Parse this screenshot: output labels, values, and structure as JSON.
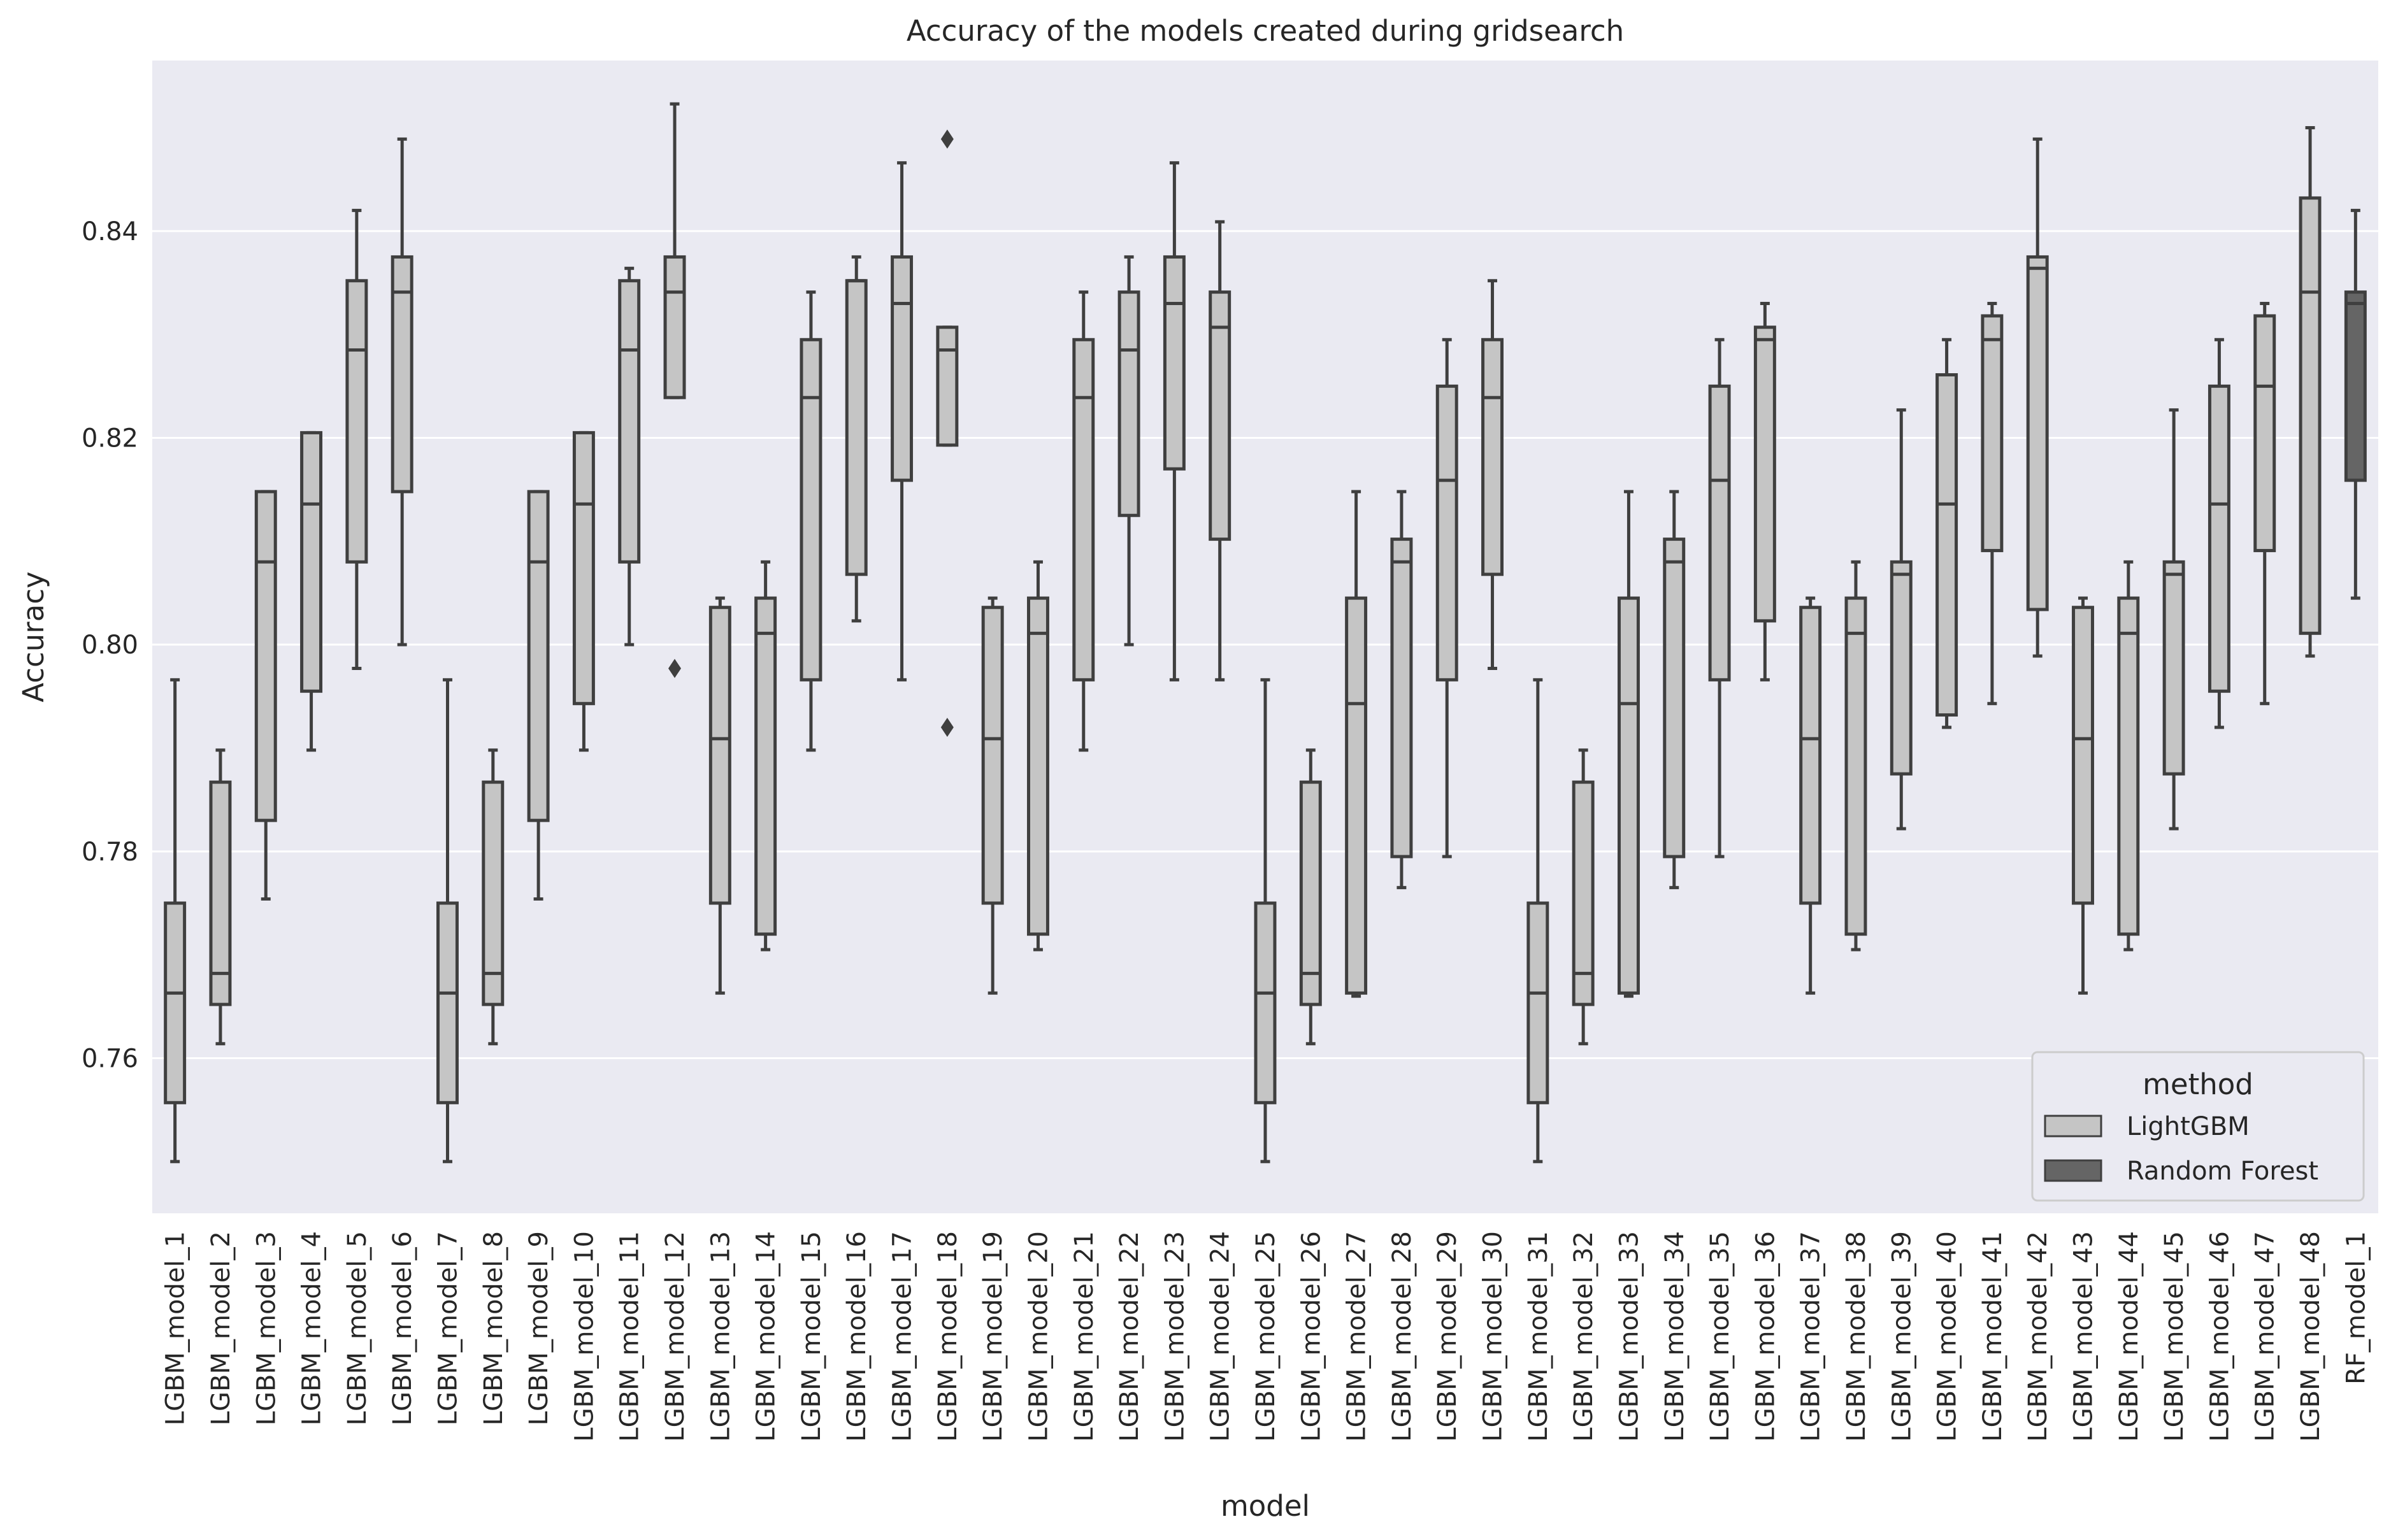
{
  "chart_data": {
    "type": "box",
    "title": "Accuracy of the models created during gridsearch",
    "xlabel": "model",
    "ylabel": "Accuracy",
    "ylim": [
      0.745,
      0.8565
    ],
    "yticks": [
      0.76,
      0.78,
      0.8,
      0.82,
      0.84
    ],
    "ytick_labels": [
      "0.76",
      "0.78",
      "0.80",
      "0.82",
      "0.84"
    ],
    "grid": true,
    "legend": {
      "title": "method",
      "position": "lower-right",
      "entries": [
        {
          "label": "LightGBM",
          "color": "#c5c5c5"
        },
        {
          "label": "Random Forest",
          "color": "#656565"
        }
      ]
    },
    "colors": {
      "background": "#eaeaf2",
      "grid": "#ffffff",
      "box_edge": "#3f3f3f",
      "LightGBM": "#c5c5c5",
      "Random Forest": "#656565"
    },
    "categories": [
      "LGBM_model_1",
      "LGBM_model_2",
      "LGBM_model_3",
      "LGBM_model_4",
      "LGBM_model_5",
      "LGBM_model_6",
      "LGBM_model_7",
      "LGBM_model_8",
      "LGBM_model_9",
      "LGBM_model_10",
      "LGBM_model_11",
      "LGBM_model_12",
      "LGBM_model_13",
      "LGBM_model_14",
      "LGBM_model_15",
      "LGBM_model_16",
      "LGBM_model_17",
      "LGBM_model_18",
      "LGBM_model_19",
      "LGBM_model_20",
      "LGBM_model_21",
      "LGBM_model_22",
      "LGBM_model_23",
      "LGBM_model_24",
      "LGBM_model_25",
      "LGBM_model_26",
      "LGBM_model_27",
      "LGBM_model_28",
      "LGBM_model_29",
      "LGBM_model_30",
      "LGBM_model_31",
      "LGBM_model_32",
      "LGBM_model_33",
      "LGBM_model_34",
      "LGBM_model_35",
      "LGBM_model_36",
      "LGBM_model_37",
      "LGBM_model_38",
      "LGBM_model_39",
      "LGBM_model_40",
      "LGBM_model_41",
      "LGBM_model_42",
      "LGBM_model_43",
      "LGBM_model_44",
      "LGBM_model_45",
      "LGBM_model_46",
      "LGBM_model_47",
      "LGBM_model_48",
      "RF_model_1"
    ],
    "boxes": [
      {
        "method": "LightGBM",
        "whislo": 0.75,
        "q1": 0.7557,
        "med": 0.7663,
        "q3": 0.775,
        "whishi": 0.7966,
        "fliers": []
      },
      {
        "method": "LightGBM",
        "whislo": 0.7614,
        "q1": 0.7652,
        "med": 0.7682,
        "q3": 0.7867,
        "whishi": 0.7898,
        "fliers": []
      },
      {
        "method": "LightGBM",
        "whislo": 0.7754,
        "q1": 0.783,
        "med": 0.808,
        "q3": 0.8148,
        "whishi": 0.8148,
        "fliers": []
      },
      {
        "method": "LightGBM",
        "whislo": 0.7898,
        "q1": 0.7955,
        "med": 0.8136,
        "q3": 0.8205,
        "whishi": 0.8205,
        "fliers": []
      },
      {
        "method": "LightGBM",
        "whislo": 0.7977,
        "q1": 0.808,
        "med": 0.8285,
        "q3": 0.8352,
        "whishi": 0.842,
        "fliers": []
      },
      {
        "method": "LightGBM",
        "whislo": 0.8,
        "q1": 0.8148,
        "med": 0.8341,
        "q3": 0.8375,
        "whishi": 0.8489,
        "fliers": []
      },
      {
        "method": "LightGBM",
        "whislo": 0.75,
        "q1": 0.7557,
        "med": 0.7663,
        "q3": 0.775,
        "whishi": 0.7966,
        "fliers": []
      },
      {
        "method": "LightGBM",
        "whislo": 0.7614,
        "q1": 0.7652,
        "med": 0.7682,
        "q3": 0.7867,
        "whishi": 0.7898,
        "fliers": []
      },
      {
        "method": "LightGBM",
        "whislo": 0.7754,
        "q1": 0.783,
        "med": 0.808,
        "q3": 0.8148,
        "whishi": 0.8148,
        "fliers": []
      },
      {
        "method": "LightGBM",
        "whislo": 0.7898,
        "q1": 0.7943,
        "med": 0.8136,
        "q3": 0.8205,
        "whishi": 0.8205,
        "fliers": []
      },
      {
        "method": "LightGBM",
        "whislo": 0.8,
        "q1": 0.808,
        "med": 0.8285,
        "q3": 0.8352,
        "whishi": 0.8364,
        "fliers": []
      },
      {
        "method": "LightGBM",
        "whislo": 0.8239,
        "q1": 0.8239,
        "med": 0.8341,
        "q3": 0.8375,
        "whishi": 0.8523,
        "fliers": [
          0.7977
        ]
      },
      {
        "method": "LightGBM",
        "whislo": 0.7663,
        "q1": 0.775,
        "med": 0.7909,
        "q3": 0.8036,
        "whishi": 0.8045,
        "fliers": []
      },
      {
        "method": "LightGBM",
        "whislo": 0.7705,
        "q1": 0.772,
        "med": 0.8011,
        "q3": 0.8045,
        "whishi": 0.808,
        "fliers": []
      },
      {
        "method": "LightGBM",
        "whislo": 0.7898,
        "q1": 0.7966,
        "med": 0.8239,
        "q3": 0.8295,
        "whishi": 0.8341,
        "fliers": []
      },
      {
        "method": "LightGBM",
        "whislo": 0.8023,
        "q1": 0.8068,
        "med": 0.8352,
        "q3": 0.8352,
        "whishi": 0.8375,
        "fliers": []
      },
      {
        "method": "LightGBM",
        "whislo": 0.7966,
        "q1": 0.8159,
        "med": 0.833,
        "q3": 0.8375,
        "whishi": 0.8466,
        "fliers": []
      },
      {
        "method": "LightGBM",
        "whislo": 0.8193,
        "q1": 0.8193,
        "med": 0.8285,
        "q3": 0.8307,
        "whishi": 0.8307,
        "fliers": [
          0.792,
          0.8489
        ]
      },
      {
        "method": "LightGBM",
        "whislo": 0.7663,
        "q1": 0.775,
        "med": 0.7909,
        "q3": 0.8036,
        "whishi": 0.8045,
        "fliers": []
      },
      {
        "method": "LightGBM",
        "whislo": 0.7705,
        "q1": 0.772,
        "med": 0.8011,
        "q3": 0.8045,
        "whishi": 0.808,
        "fliers": []
      },
      {
        "method": "LightGBM",
        "whislo": 0.7898,
        "q1": 0.7966,
        "med": 0.8239,
        "q3": 0.8295,
        "whishi": 0.8341,
        "fliers": []
      },
      {
        "method": "LightGBM",
        "whislo": 0.8,
        "q1": 0.8125,
        "med": 0.8285,
        "q3": 0.8341,
        "whishi": 0.8375,
        "fliers": []
      },
      {
        "method": "LightGBM",
        "whislo": 0.7966,
        "q1": 0.817,
        "med": 0.833,
        "q3": 0.8375,
        "whishi": 0.8466,
        "fliers": []
      },
      {
        "method": "LightGBM",
        "whislo": 0.7966,
        "q1": 0.8102,
        "med": 0.8307,
        "q3": 0.8341,
        "whishi": 0.8409,
        "fliers": []
      },
      {
        "method": "LightGBM",
        "whislo": 0.75,
        "q1": 0.7557,
        "med": 0.7663,
        "q3": 0.775,
        "whishi": 0.7966,
        "fliers": []
      },
      {
        "method": "LightGBM",
        "whislo": 0.7614,
        "q1": 0.7652,
        "med": 0.7682,
        "q3": 0.7867,
        "whishi": 0.7898,
        "fliers": []
      },
      {
        "method": "LightGBM",
        "whislo": 0.766,
        "q1": 0.7663,
        "med": 0.7943,
        "q3": 0.8045,
        "whishi": 0.8148,
        "fliers": []
      },
      {
        "method": "LightGBM",
        "whislo": 0.7765,
        "q1": 0.7795,
        "med": 0.808,
        "q3": 0.8102,
        "whishi": 0.8148,
        "fliers": []
      },
      {
        "method": "LightGBM",
        "whislo": 0.7795,
        "q1": 0.7966,
        "med": 0.8159,
        "q3": 0.825,
        "whishi": 0.8295,
        "fliers": []
      },
      {
        "method": "LightGBM",
        "whislo": 0.7977,
        "q1": 0.8068,
        "med": 0.8239,
        "q3": 0.8295,
        "whishi": 0.8352,
        "fliers": []
      },
      {
        "method": "LightGBM",
        "whislo": 0.75,
        "q1": 0.7557,
        "med": 0.7663,
        "q3": 0.775,
        "whishi": 0.7966,
        "fliers": []
      },
      {
        "method": "LightGBM",
        "whislo": 0.7614,
        "q1": 0.7652,
        "med": 0.7682,
        "q3": 0.7867,
        "whishi": 0.7898,
        "fliers": []
      },
      {
        "method": "LightGBM",
        "whislo": 0.766,
        "q1": 0.7663,
        "med": 0.7943,
        "q3": 0.8045,
        "whishi": 0.8148,
        "fliers": []
      },
      {
        "method": "LightGBM",
        "whislo": 0.7765,
        "q1": 0.7795,
        "med": 0.808,
        "q3": 0.8102,
        "whishi": 0.8148,
        "fliers": []
      },
      {
        "method": "LightGBM",
        "whislo": 0.7795,
        "q1": 0.7966,
        "med": 0.8159,
        "q3": 0.825,
        "whishi": 0.8295,
        "fliers": []
      },
      {
        "method": "LightGBM",
        "whislo": 0.7966,
        "q1": 0.8023,
        "med": 0.8295,
        "q3": 0.8307,
        "whishi": 0.833,
        "fliers": []
      },
      {
        "method": "LightGBM",
        "whislo": 0.7663,
        "q1": 0.775,
        "med": 0.7909,
        "q3": 0.8036,
        "whishi": 0.8045,
        "fliers": []
      },
      {
        "method": "LightGBM",
        "whislo": 0.7705,
        "q1": 0.772,
        "med": 0.8011,
        "q3": 0.8045,
        "whishi": 0.808,
        "fliers": []
      },
      {
        "method": "LightGBM",
        "whislo": 0.7822,
        "q1": 0.7875,
        "med": 0.8068,
        "q3": 0.808,
        "whishi": 0.8227,
        "fliers": []
      },
      {
        "method": "LightGBM",
        "whislo": 0.792,
        "q1": 0.7932,
        "med": 0.8136,
        "q3": 0.8261,
        "whishi": 0.8295,
        "fliers": []
      },
      {
        "method": "LightGBM",
        "whislo": 0.7943,
        "q1": 0.8091,
        "med": 0.8295,
        "q3": 0.8318,
        "whishi": 0.833,
        "fliers": []
      },
      {
        "method": "LightGBM",
        "whislo": 0.7989,
        "q1": 0.8034,
        "med": 0.8364,
        "q3": 0.8375,
        "whishi": 0.8489,
        "fliers": []
      },
      {
        "method": "LightGBM",
        "whislo": 0.7663,
        "q1": 0.775,
        "med": 0.7909,
        "q3": 0.8036,
        "whishi": 0.8045,
        "fliers": []
      },
      {
        "method": "LightGBM",
        "whislo": 0.7705,
        "q1": 0.772,
        "med": 0.8011,
        "q3": 0.8045,
        "whishi": 0.808,
        "fliers": []
      },
      {
        "method": "LightGBM",
        "whislo": 0.7822,
        "q1": 0.7875,
        "med": 0.8068,
        "q3": 0.808,
        "whishi": 0.8227,
        "fliers": []
      },
      {
        "method": "LightGBM",
        "whislo": 0.792,
        "q1": 0.7955,
        "med": 0.8136,
        "q3": 0.825,
        "whishi": 0.8295,
        "fliers": []
      },
      {
        "method": "LightGBM",
        "whislo": 0.7943,
        "q1": 0.8091,
        "med": 0.825,
        "q3": 0.8318,
        "whishi": 0.833,
        "fliers": []
      },
      {
        "method": "LightGBM",
        "whislo": 0.7989,
        "q1": 0.8011,
        "med": 0.8341,
        "q3": 0.8432,
        "whishi": 0.85,
        "fliers": []
      },
      {
        "method": "Random Forest",
        "whislo": 0.8045,
        "q1": 0.8159,
        "med": 0.833,
        "q3": 0.8341,
        "whishi": 0.842,
        "fliers": []
      }
    ]
  }
}
